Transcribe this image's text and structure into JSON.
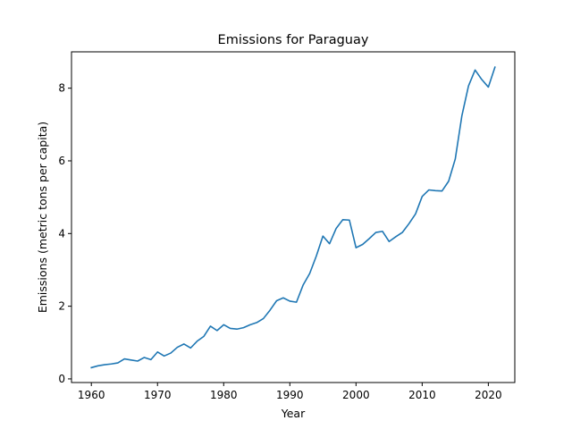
{
  "chart_data": {
    "type": "line",
    "title": "Emissions for Paraguay",
    "xlabel": "Year",
    "ylabel": "Emissions (metric tons per capita)",
    "xlim": [
      1957,
      2024
    ],
    "ylim": [
      -0.1,
      9.0
    ],
    "xticks": [
      1960,
      1970,
      1980,
      1990,
      2000,
      2010,
      2020
    ],
    "yticks": [
      0,
      2,
      4,
      6,
      8
    ],
    "grid": false,
    "line_color": "#1f77b4",
    "series": [
      {
        "x": [
          1960,
          1961,
          1962,
          1963,
          1964,
          1965,
          1966,
          1967,
          1968,
          1969,
          1970,
          1971,
          1972,
          1973,
          1974,
          1975,
          1976,
          1977,
          1978,
          1979,
          1980,
          1981,
          1982,
          1983,
          1984,
          1985,
          1986,
          1987,
          1988,
          1989,
          1990,
          1991,
          1992,
          1993,
          1994,
          1995,
          1996,
          1997,
          1998,
          1999,
          2000,
          2001,
          2002,
          2003,
          2004,
          2005,
          2006,
          2007,
          2008,
          2009,
          2010,
          2011,
          2012,
          2013,
          2014,
          2015,
          2016,
          2017,
          2018,
          2019,
          2020,
          2021
        ],
        "values": [
          0.31,
          0.36,
          0.39,
          0.41,
          0.44,
          0.55,
          0.52,
          0.49,
          0.59,
          0.53,
          0.74,
          0.63,
          0.71,
          0.87,
          0.96,
          0.85,
          1.04,
          1.17,
          1.45,
          1.33,
          1.49,
          1.39,
          1.37,
          1.41,
          1.49,
          1.55,
          1.66,
          1.89,
          2.15,
          2.23,
          2.14,
          2.11,
          2.58,
          2.9,
          3.38,
          3.93,
          3.72,
          4.14,
          4.38,
          4.37,
          3.61,
          3.7,
          3.86,
          4.03,
          4.06,
          3.78,
          3.91,
          4.03,
          4.27,
          4.54,
          5.02,
          5.2,
          5.18,
          5.17,
          5.44,
          6.05,
          7.24,
          8.06,
          8.5,
          8.24,
          8.03,
          8.58
        ]
      }
    ]
  }
}
